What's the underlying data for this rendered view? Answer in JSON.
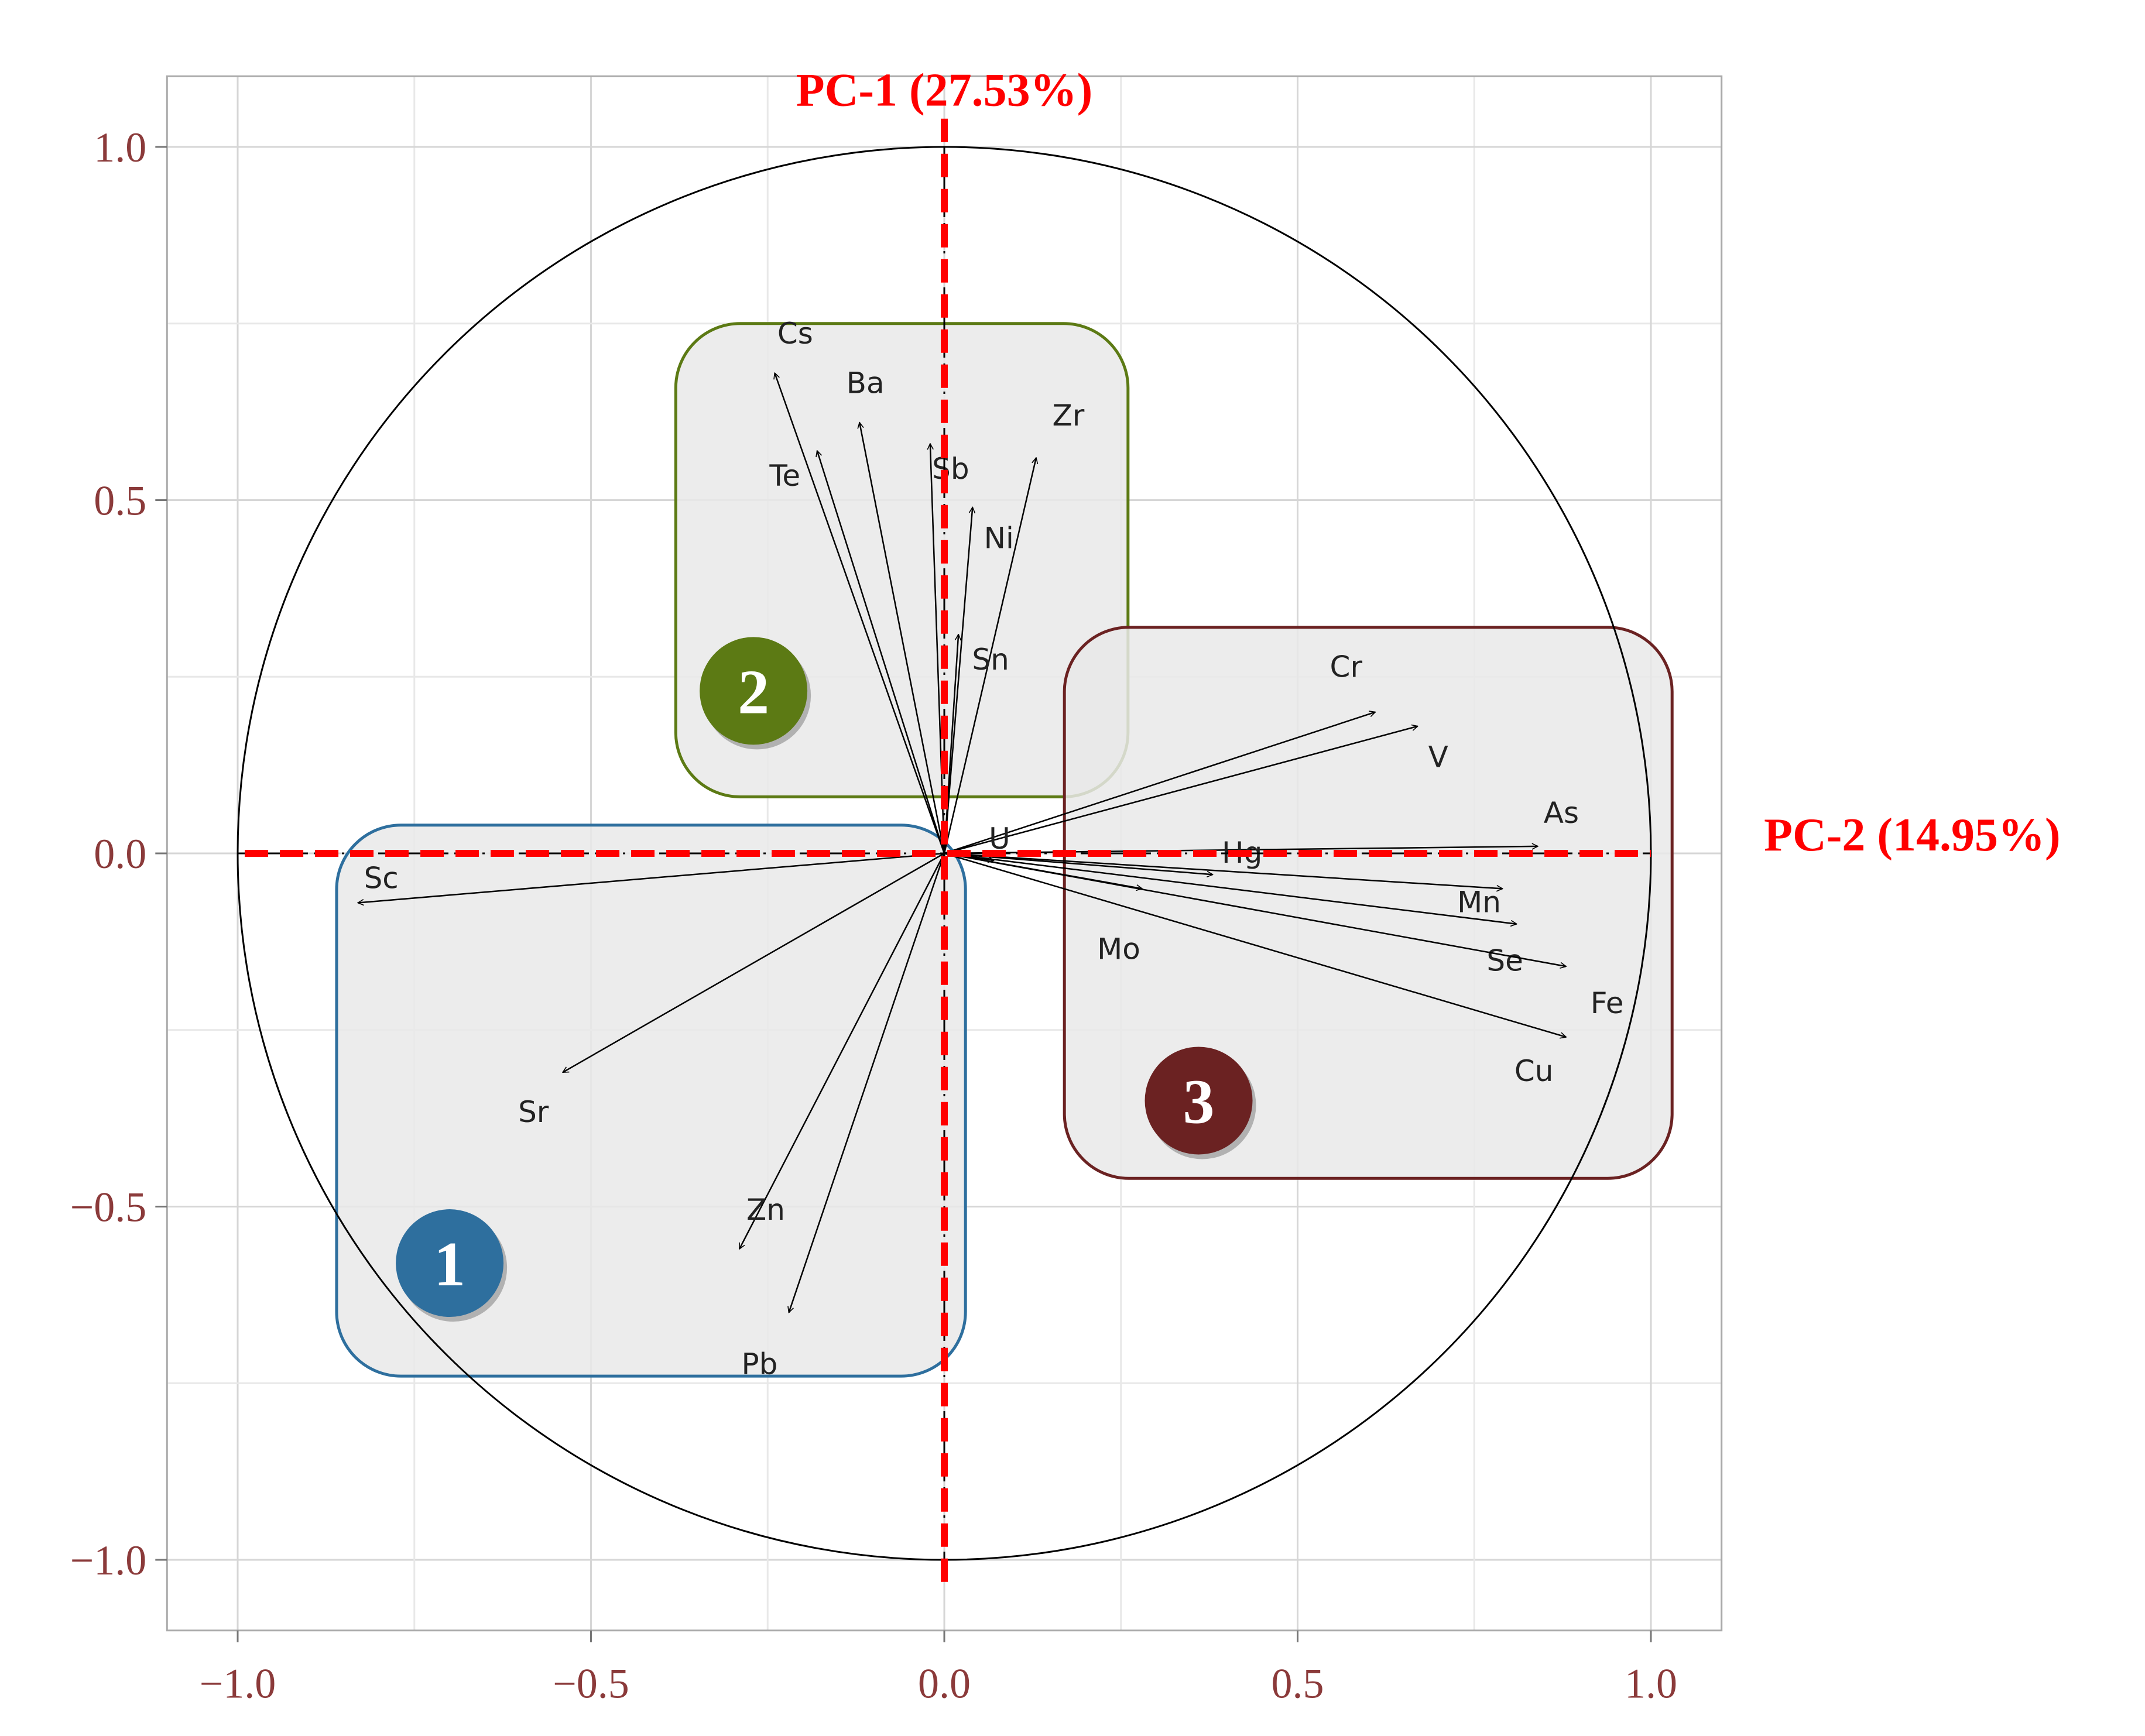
{
  "chart_data": {
    "type": "scatter",
    "subtype": "pca-correlation-circle",
    "xlim": [
      -1.1,
      1.1
    ],
    "ylim": [
      -1.1,
      1.1
    ],
    "x_ticks": [
      "−1.0",
      "−0.5",
      "0.0",
      "0.5",
      "1.0"
    ],
    "y_ticks": [
      "1.0",
      "0.5",
      "0.0",
      "−0.5",
      "−1.0"
    ],
    "x_tick_values": [
      -1.0,
      -0.5,
      0.0,
      0.5,
      1.0
    ],
    "y_tick_values": [
      1.0,
      0.5,
      0.0,
      -0.5,
      -1.0
    ],
    "grid": true,
    "unit_circle": true,
    "axis_titles": {
      "pc1": "PC-1 (27.53%)",
      "pc2": "PC-2 (14.95%)"
    },
    "colors": {
      "axis_title": "#ff0000",
      "tick": "#8b3a3a",
      "group1": "#2e6f9e",
      "group2": "#5c7a14",
      "group3": "#6b2222"
    },
    "groups": [
      {
        "label": "1",
        "x_range": [
          -0.86,
          0.03
        ],
        "y_range": [
          -0.74,
          0.04
        ],
        "color": "#2e6f9e",
        "badge": [
          -0.7,
          -0.58
        ]
      },
      {
        "label": "2",
        "x_range": [
          -0.38,
          0.26
        ],
        "y_range": [
          0.08,
          0.75
        ],
        "color": "#5c7a14",
        "badge": [
          -0.27,
          0.23
        ]
      },
      {
        "label": "3",
        "x_range": [
          0.17,
          1.03
        ],
        "y_range": [
          -0.46,
          0.32
        ],
        "color": "#6b2222",
        "badge": [
          0.36,
          -0.35
        ]
      }
    ],
    "vectors": [
      {
        "name": "Cs",
        "x": -0.24,
        "y": 0.68
      },
      {
        "name": "Ba",
        "x": -0.12,
        "y": 0.61
      },
      {
        "name": "Te",
        "x": -0.18,
        "y": 0.57
      },
      {
        "name": "Sb",
        "x": -0.02,
        "y": 0.58
      },
      {
        "name": "Zr",
        "x": 0.13,
        "y": 0.56
      },
      {
        "name": "Ni",
        "x": 0.04,
        "y": 0.49
      },
      {
        "name": "Sn",
        "x": 0.02,
        "y": 0.31
      },
      {
        "name": "Cr",
        "x": 0.61,
        "y": 0.2
      },
      {
        "name": "V",
        "x": 0.67,
        "y": 0.18
      },
      {
        "name": "As",
        "x": 0.84,
        "y": 0.01
      },
      {
        "name": "Hg",
        "x": 0.38,
        "y": -0.03
      },
      {
        "name": "Mn",
        "x": 0.79,
        "y": -0.05
      },
      {
        "name": "U",
        "x": 0.07,
        "y": -0.01
      },
      {
        "name": "Mo",
        "x": 0.28,
        "y": -0.05
      },
      {
        "name": "Se",
        "x": 0.81,
        "y": -0.1
      },
      {
        "name": "Fe",
        "x": 0.88,
        "y": -0.16
      },
      {
        "name": "Cu",
        "x": 0.88,
        "y": -0.26
      },
      {
        "name": "Sc",
        "x": -0.83,
        "y": -0.07
      },
      {
        "name": "Sr",
        "x": -0.54,
        "y": -0.31
      },
      {
        "name": "Zn",
        "x": -0.29,
        "y": -0.56
      },
      {
        "name": "Pb",
        "x": -0.22,
        "y": -0.65
      }
    ]
  }
}
